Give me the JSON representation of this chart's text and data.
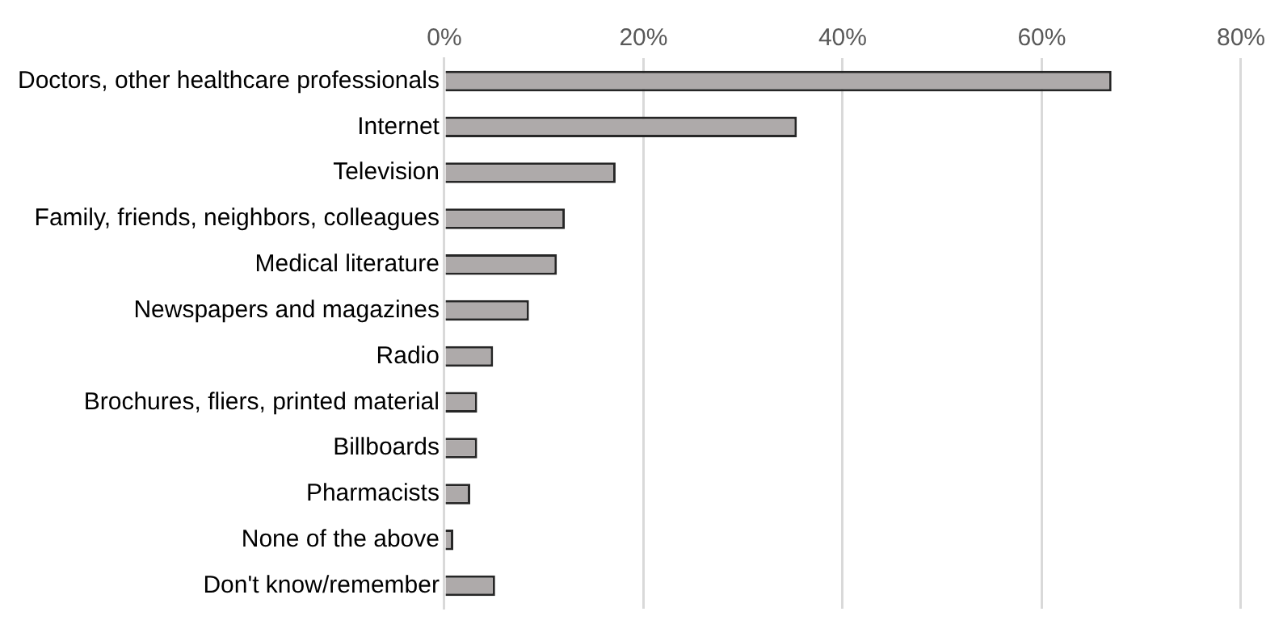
{
  "chart_data": {
    "type": "bar",
    "orientation": "horizontal",
    "categories": [
      "Doctors, other healthcare professionals",
      "Internet",
      "Television",
      "Family, friends, neighbors, colleagues",
      "Medical literature",
      "Newspapers and magazines",
      "Radio",
      "Brochures, fliers, printed material",
      "Billboards",
      "Pharmacists",
      "None of the above",
      "Don't know/remember"
    ],
    "values": [
      67.0,
      35.4,
      17.2,
      12.1,
      11.3,
      8.5,
      4.9,
      3.3,
      3.3,
      2.6,
      0.9,
      5.1
    ],
    "color": "#aeaaaa",
    "xlim": [
      0,
      80
    ],
    "xticks": [
      {
        "value": 0,
        "label": "0%"
      },
      {
        "value": 20,
        "label": "20%"
      },
      {
        "value": 40,
        "label": "40%"
      },
      {
        "value": 60,
        "label": "60%"
      },
      {
        "value": 80,
        "label": "80%"
      }
    ],
    "grid": "x",
    "legend": false
  }
}
